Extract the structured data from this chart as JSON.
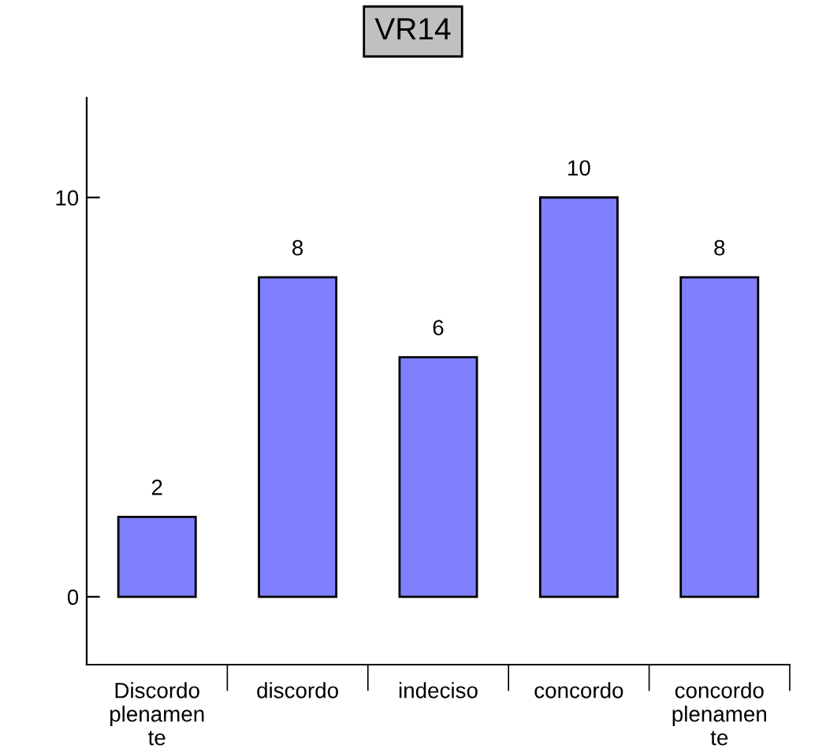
{
  "chart_data": {
    "type": "bar",
    "title": "VR14",
    "categories": [
      "Discordo\nplenamen\nte",
      "discordo",
      "indeciso",
      "concordo",
      "concordo\nplenamen\nte"
    ],
    "values": [
      2,
      8,
      6,
      10,
      8
    ],
    "color": "#8080ff",
    "ylim": [
      -1.7,
      12.5
    ],
    "yticks": [
      0,
      10
    ],
    "data_labels": true,
    "grid": false,
    "legend": false
  }
}
